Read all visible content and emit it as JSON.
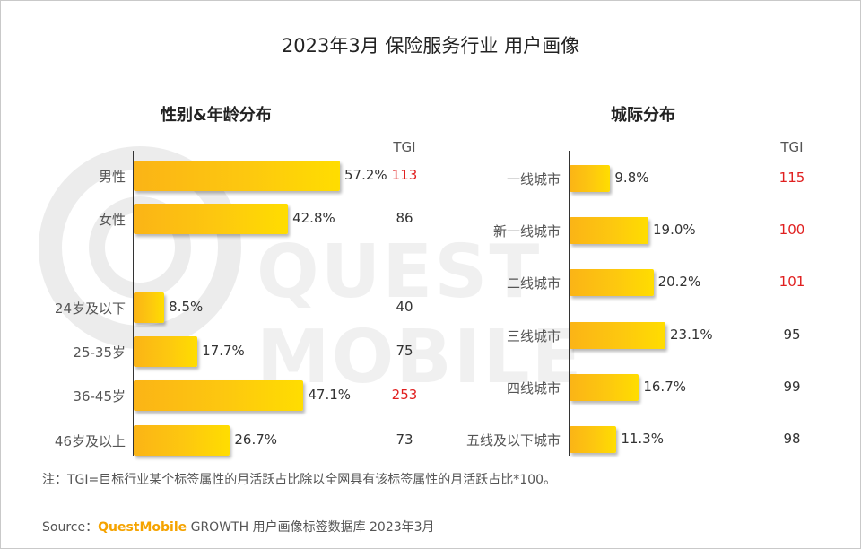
{
  "title": "2023年3月 保险服务行业 用户画像",
  "watermark": "QUEST MOBILE",
  "chart_data": [
    {
      "type": "bar",
      "orientation": "horizontal",
      "title": "性别&年龄分布",
      "tgi_header": "TGI",
      "categories": [
        "男性",
        "女性",
        "24岁及以下",
        "25-35岁",
        "36-45岁",
        "46岁及以上"
      ],
      "values": [
        57.2,
        42.8,
        8.5,
        17.7,
        47.1,
        26.7
      ],
      "value_labels": [
        "57.2%",
        "42.8%",
        "8.5%",
        "17.7%",
        "47.1%",
        "26.7%"
      ],
      "tgi": [
        113,
        86,
        40,
        75,
        253,
        73
      ],
      "tgi_highlight_color": "#e01f1f",
      "bar_color": "#fdc80f"
    },
    {
      "type": "bar",
      "orientation": "horizontal",
      "title": "城际分布",
      "tgi_header": "TGI",
      "categories": [
        "一线城市",
        "新一线城市",
        "二线城市",
        "三线城市",
        "四线城市",
        "五线及以下城市"
      ],
      "values": [
        9.8,
        19.0,
        20.2,
        23.1,
        16.7,
        11.3
      ],
      "value_labels": [
        "9.8%",
        "19.0%",
        "20.2%",
        "23.1%",
        "16.7%",
        "11.3%"
      ],
      "tgi": [
        115,
        100,
        101,
        95,
        99,
        98
      ],
      "tgi_highlight_color": "#e01f1f",
      "bar_color": "#fdc80f"
    }
  ],
  "footnote": "注：TGI=目标行业某个标签属性的月活跃占比除以全网具有该标签属性的月活跃占比*100。",
  "source": {
    "prefix": "Source：",
    "brand": "QuestMobile",
    "suffix": " GROWTH 用户画像标签数据库 2023年3月"
  }
}
